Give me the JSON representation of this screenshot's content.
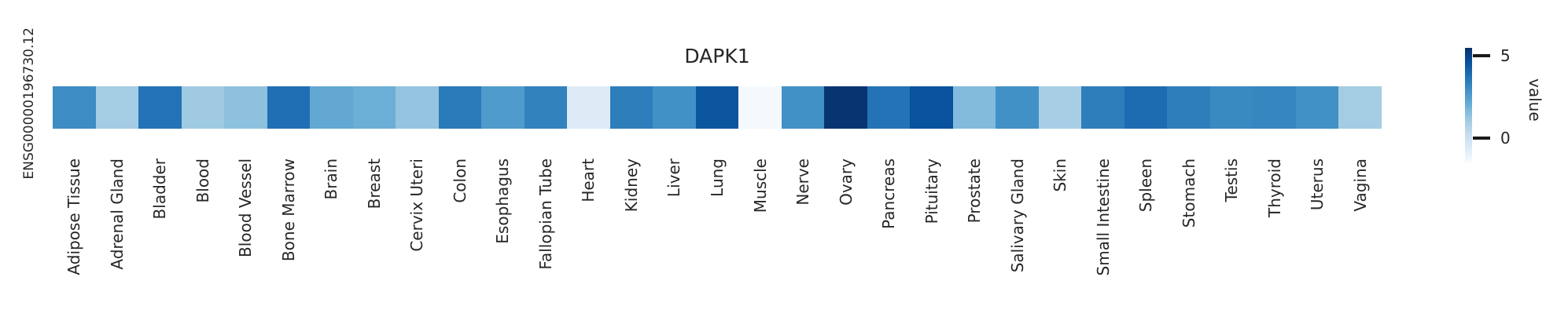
{
  "chart_data": {
    "type": "heatmap",
    "title": "DAPK1",
    "rows": [
      "ENSG00000196730.12"
    ],
    "columns": [
      "Adipose Tissue",
      "Adrenal Gland",
      "Bladder",
      "Blood",
      "Blood Vessel",
      "Bone Marrow",
      "Brain",
      "Breast",
      "Cervix Uteri",
      "Colon",
      "Esophagus",
      "Fallopian Tube",
      "Heart",
      "Kidney",
      "Liver",
      "Lung",
      "Muscle",
      "Nerve",
      "Ovary",
      "Pancreas",
      "Pituitary",
      "Prostate",
      "Salivary Gland",
      "Skin",
      "Small Intestine",
      "Spleen",
      "Stomach",
      "Testis",
      "Thyroid",
      "Uterus",
      "Vagina"
    ],
    "values": [
      [
        3.0,
        1.0,
        3.7,
        1.1,
        1.4,
        3.8,
        2.2,
        2.0,
        1.3,
        3.5,
        2.6,
        3.3,
        -0.6,
        3.4,
        2.9,
        4.5,
        -1.4,
        2.9,
        5.4,
        3.7,
        4.6,
        1.6,
        2.9,
        0.9,
        3.4,
        3.9,
        3.4,
        3.1,
        3.2,
        2.9,
        1.0
      ]
    ],
    "vmin": -1.5,
    "vmax": 5.5,
    "colormap": {
      "name": "Blues",
      "anchors": [
        "#f7fbff",
        "#deebf7",
        "#c6dbef",
        "#9ecae1",
        "#6baed6",
        "#4292c6",
        "#2171b5",
        "#08519c",
        "#08306b"
      ]
    },
    "colorbar_label": "value",
    "colorbar_ticks": [
      0,
      5
    ],
    "text_color": "#262626",
    "legend_position": "right",
    "grid": false
  }
}
